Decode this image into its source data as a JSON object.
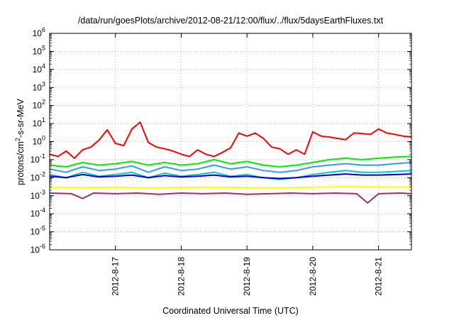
{
  "chart_data": {
    "type": "line",
    "title": "/data/run/goesPlots/archive/2012-08-21/12:00/flux/../flux/5daysEarthFluxes.txt",
    "xlabel": "Coordinated Universal Time (UTC)",
    "ylabel_parts": [
      "protons/cm",
      "2",
      "-s-sr-MeV"
    ],
    "y_scale": "log",
    "ylim": [
      1e-06,
      1000000.0
    ],
    "y_ticks": [
      {
        "base": "10",
        "exp": "-6",
        "v": -6
      },
      {
        "base": "10",
        "exp": "-5",
        "v": -5
      },
      {
        "base": "10",
        "exp": "-4",
        "v": -4
      },
      {
        "base": "10",
        "exp": "-3",
        "v": -3
      },
      {
        "base": "10",
        "exp": "-2",
        "v": -2
      },
      {
        "base": "10",
        "exp": "-1",
        "v": -1
      },
      {
        "base": "10",
        "exp": "0",
        "v": 0
      },
      {
        "base": "10",
        "exp": "1",
        "v": 1
      },
      {
        "base": "10",
        "exp": "2",
        "v": 2
      },
      {
        "base": "10",
        "exp": "3",
        "v": 3
      },
      {
        "base": "10",
        "exp": "4",
        "v": 4
      },
      {
        "base": "10",
        "exp": "5",
        "v": 5
      },
      {
        "base": "10",
        "exp": "6",
        "v": 6
      }
    ],
    "xlim": [
      "2012-08-16T00:00",
      "2012-08-21T12:00"
    ],
    "x_ticks": [
      {
        "label": "2012-8-17",
        "t": "2012-08-17T00:00"
      },
      {
        "label": "2012-8-18",
        "t": "2012-08-18T00:00"
      },
      {
        "label": "2012-8-19",
        "t": "2012-08-19T00:00"
      },
      {
        "label": "2012-8-20",
        "t": "2012-08-20T00:00"
      },
      {
        "label": "2012-8-21",
        "t": "2012-08-21T00:00"
      }
    ],
    "grid": true,
    "series": [
      {
        "color": "#ff0000",
        "x": [
          "2012-08-16T00:00",
          "2012-08-16T03:00",
          "2012-08-16T06:00",
          "2012-08-16T09:00",
          "2012-08-16T12:00",
          "2012-08-16T15:00",
          "2012-08-16T18:00",
          "2012-08-16T21:00",
          "2012-08-17T00:00",
          "2012-08-17T03:00",
          "2012-08-17T06:00",
          "2012-08-17T09:00",
          "2012-08-17T12:00",
          "2012-08-17T15:00",
          "2012-08-17T18:00",
          "2012-08-17T21:00",
          "2012-08-18T00:00",
          "2012-08-18T03:00",
          "2012-08-18T06:00",
          "2012-08-18T09:00",
          "2012-08-18T12:00",
          "2012-08-18T15:00",
          "2012-08-18T18:00",
          "2012-08-18T21:00",
          "2012-08-19T00:00",
          "2012-08-19T03:00",
          "2012-08-19T06:00",
          "2012-08-19T09:00",
          "2012-08-19T12:00",
          "2012-08-19T15:00",
          "2012-08-19T18:00",
          "2012-08-19T21:00",
          "2012-08-20T00:00",
          "2012-08-20T03:00",
          "2012-08-20T06:00",
          "2012-08-20T09:00",
          "2012-08-20T12:00",
          "2012-08-20T15:00",
          "2012-08-20T18:00",
          "2012-08-20T21:00",
          "2012-08-21T00:00",
          "2012-08-21T03:00",
          "2012-08-21T06:00",
          "2012-08-21T09:00",
          "2012-08-21T12:00"
        ],
        "values": [
          0.2,
          0.15,
          0.3,
          0.12,
          0.35,
          0.5,
          1.2,
          4.5,
          0.8,
          0.6,
          5.0,
          12.0,
          0.9,
          0.5,
          0.4,
          0.3,
          0.2,
          0.15,
          0.35,
          0.2,
          0.15,
          0.25,
          0.45,
          3.0,
          2.0,
          3.0,
          1.5,
          0.5,
          0.4,
          0.2,
          0.35,
          0.2,
          3.5,
          2.0,
          1.8,
          1.5,
          1.3,
          3.0,
          2.8,
          2.5,
          5.0,
          3.0,
          2.5,
          2.0,
          1.8
        ]
      },
      {
        "color": "#00ee00",
        "x": [
          "2012-08-16T00:00",
          "2012-08-16T06:00",
          "2012-08-16T12:00",
          "2012-08-16T18:00",
          "2012-08-17T00:00",
          "2012-08-17T06:00",
          "2012-08-17T12:00",
          "2012-08-17T18:00",
          "2012-08-18T00:00",
          "2012-08-18T06:00",
          "2012-08-18T12:00",
          "2012-08-18T18:00",
          "2012-08-19T00:00",
          "2012-08-19T06:00",
          "2012-08-19T12:00",
          "2012-08-19T18:00",
          "2012-08-20T00:00",
          "2012-08-20T06:00",
          "2012-08-20T12:00",
          "2012-08-20T18:00",
          "2012-08-21T00:00",
          "2012-08-21T06:00",
          "2012-08-21T12:00"
        ],
        "values": [
          0.05,
          0.04,
          0.07,
          0.05,
          0.06,
          0.08,
          0.05,
          0.07,
          0.05,
          0.06,
          0.1,
          0.06,
          0.08,
          0.05,
          0.04,
          0.05,
          0.07,
          0.1,
          0.12,
          0.1,
          0.12,
          0.14,
          0.15
        ]
      },
      {
        "color": "#3399ff",
        "x": [
          "2012-08-16T00:00",
          "2012-08-16T06:00",
          "2012-08-16T12:00",
          "2012-08-16T18:00",
          "2012-08-17T00:00",
          "2012-08-17T06:00",
          "2012-08-17T12:00",
          "2012-08-17T18:00",
          "2012-08-18T00:00",
          "2012-08-18T06:00",
          "2012-08-18T12:00",
          "2012-08-18T18:00",
          "2012-08-19T00:00",
          "2012-08-19T06:00",
          "2012-08-19T12:00",
          "2012-08-19T18:00",
          "2012-08-20T00:00",
          "2012-08-20T06:00",
          "2012-08-20T12:00",
          "2012-08-20T18:00",
          "2012-08-21T00:00",
          "2012-08-21T06:00",
          "2012-08-21T12:00"
        ],
        "values": [
          0.03,
          0.02,
          0.04,
          0.025,
          0.03,
          0.045,
          0.02,
          0.04,
          0.025,
          0.03,
          0.05,
          0.03,
          0.04,
          0.025,
          0.02,
          0.025,
          0.04,
          0.05,
          0.06,
          0.05,
          0.05,
          0.06,
          0.07
        ]
      },
      {
        "color": "#00cccc",
        "x": [
          "2012-08-16T00:00",
          "2012-08-16T06:00",
          "2012-08-16T12:00",
          "2012-08-16T18:00",
          "2012-08-17T00:00",
          "2012-08-17T06:00",
          "2012-08-17T12:00",
          "2012-08-17T18:00",
          "2012-08-18T00:00",
          "2012-08-18T06:00",
          "2012-08-18T12:00",
          "2012-08-18T18:00",
          "2012-08-19T00:00",
          "2012-08-19T06:00",
          "2012-08-19T12:00",
          "2012-08-19T18:00",
          "2012-08-20T00:00",
          "2012-08-20T06:00",
          "2012-08-20T12:00",
          "2012-08-20T18:00",
          "2012-08-21T00:00",
          "2012-08-21T06:00",
          "2012-08-21T12:00"
        ],
        "values": [
          0.015,
          0.01,
          0.02,
          0.012,
          0.015,
          0.02,
          0.01,
          0.018,
          0.012,
          0.015,
          0.02,
          0.012,
          0.015,
          0.01,
          0.008,
          0.01,
          0.015,
          0.02,
          0.025,
          0.02,
          0.02,
          0.022,
          0.025
        ]
      },
      {
        "color": "#0000cc",
        "x": [
          "2012-08-16T00:00",
          "2012-08-16T06:00",
          "2012-08-16T12:00",
          "2012-08-16T18:00",
          "2012-08-17T00:00",
          "2012-08-17T06:00",
          "2012-08-17T12:00",
          "2012-08-17T18:00",
          "2012-08-18T00:00",
          "2012-08-18T06:00",
          "2012-08-18T12:00",
          "2012-08-18T18:00",
          "2012-08-19T00:00",
          "2012-08-19T06:00",
          "2012-08-19T12:00",
          "2012-08-19T18:00",
          "2012-08-20T00:00",
          "2012-08-20T06:00",
          "2012-08-20T12:00",
          "2012-08-20T18:00",
          "2012-08-21T00:00",
          "2012-08-21T06:00",
          "2012-08-21T12:00"
        ],
        "values": [
          0.012,
          0.01,
          0.015,
          0.011,
          0.012,
          0.014,
          0.01,
          0.013,
          0.011,
          0.012,
          0.014,
          0.011,
          0.012,
          0.01,
          0.009,
          0.01,
          0.012,
          0.014,
          0.016,
          0.014,
          0.014,
          0.015,
          0.016
        ]
      },
      {
        "color": "#ffff00",
        "x": [
          "2012-08-16T00:00",
          "2012-08-16T12:00",
          "2012-08-17T00:00",
          "2012-08-17T12:00",
          "2012-08-18T00:00",
          "2012-08-18T12:00",
          "2012-08-19T00:00",
          "2012-08-19T12:00",
          "2012-08-20T00:00",
          "2012-08-20T12:00",
          "2012-08-21T00:00",
          "2012-08-21T12:00"
        ],
        "values": [
          0.003,
          0.0028,
          0.003,
          0.0027,
          0.0029,
          0.003,
          0.0028,
          0.0027,
          0.003,
          0.0032,
          0.0031,
          0.003
        ]
      },
      {
        "color": "#993366",
        "x": [
          "2012-08-16T00:00",
          "2012-08-16T08:00",
          "2012-08-16T12:00",
          "2012-08-16T16:00",
          "2012-08-17T00:00",
          "2012-08-17T08:00",
          "2012-08-17T16:00",
          "2012-08-18T00:00",
          "2012-08-18T08:00",
          "2012-08-18T16:00",
          "2012-08-19T00:00",
          "2012-08-19T08:00",
          "2012-08-19T16:00",
          "2012-08-20T00:00",
          "2012-08-20T08:00",
          "2012-08-20T16:00",
          "2012-08-20T20:00",
          "2012-08-21T00:00",
          "2012-08-21T08:00",
          "2012-08-21T12:00"
        ],
        "values": [
          0.0014,
          0.0013,
          0.0007,
          0.0014,
          0.0013,
          0.0014,
          0.0012,
          0.0014,
          0.0013,
          0.0014,
          0.0012,
          0.0013,
          0.0014,
          0.0013,
          0.0014,
          0.0013,
          0.0004,
          0.0013,
          0.0014,
          0.0013
        ]
      }
    ]
  }
}
